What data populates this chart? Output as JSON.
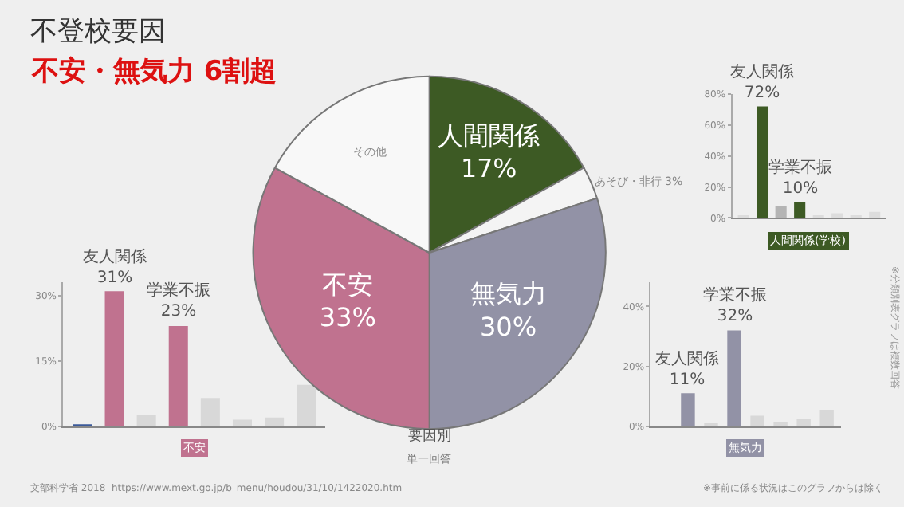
{
  "chart_data": [
    {
      "type": "pie",
      "title": "不登校要因",
      "subtitle": "不安・無気力 6割超",
      "categories": [
        "人間関係",
        "あそび・非行",
        "無気力",
        "不安",
        "その他"
      ],
      "values": [
        17,
        3,
        30,
        33,
        17
      ],
      "value_labels": [
        "17%",
        "3%",
        "30%",
        "33%",
        null
      ],
      "colors": [
        "#3d5a24",
        "#f4f4f4",
        "#9292a6",
        "#c0728f",
        "#f8f8f8"
      ],
      "annotations": [
        "要因別",
        "単一回答",
        "文部科学省 2018  https://www.mext.go.jp/b_menu/houdou/31/10/1422020.htm",
        "※事前に係る状況はこのグラフからは除く",
        "※分類別表グラフは複数回答"
      ]
    },
    {
      "type": "bar",
      "xlabel": "人間関係(学校)",
      "categories": [
        null,
        null,
        null,
        null,
        null,
        null,
        null,
        null
      ],
      "values": [
        1,
        72,
        8,
        10,
        1,
        3,
        1,
        4
      ],
      "colors": [
        "#dddddd",
        "#3d5a24",
        "#b4b4b4",
        "#3d5a24",
        "#dddddd",
        "#dddddd",
        "#dddddd",
        "#dddddd"
      ],
      "value_labels": [
        null,
        "友人関係\n72%",
        null,
        "学業不振\n10%",
        null,
        null,
        null,
        null
      ],
      "ylim": [
        0,
        80
      ],
      "yticks": [
        {
          "value": 0,
          "label": "0%"
        },
        {
          "value": 20,
          "label": "20%"
        },
        {
          "value": 40,
          "label": "40%"
        },
        {
          "value": 60,
          "label": "60%"
        },
        {
          "value": 80,
          "label": "80%"
        }
      ],
      "grid": false
    },
    {
      "type": "bar",
      "xlabel": "不安",
      "categories": [
        null,
        null,
        null,
        null,
        null,
        null,
        null,
        null
      ],
      "values": [
        0.3,
        31,
        2.5,
        23,
        6.5,
        1.5,
        2,
        9.5
      ],
      "colors": [
        "#3b5a9a",
        "#c0728f",
        "#d8d8d8",
        "#c0728f",
        "#d8d8d8",
        "#d8d8d8",
        "#d8d8d8",
        "#d8d8d8"
      ],
      "value_labels": [
        null,
        "友人関係\n31%",
        null,
        "学業不振\n23%",
        null,
        null,
        null,
        null
      ],
      "ylim": [
        0,
        33
      ],
      "yticks": [
        {
          "value": 0,
          "label": "0%"
        },
        {
          "value": 15,
          "label": "15%"
        },
        {
          "value": 30,
          "label": "30%"
        }
      ],
      "grid": false
    },
    {
      "type": "bar",
      "xlabel": "無気力",
      "categories": [
        null,
        null,
        null,
        null,
        null,
        null,
        null,
        null
      ],
      "values": [
        0,
        11,
        1,
        32,
        3.5,
        1.5,
        2.5,
        5.5
      ],
      "colors": [
        "#d8d8d8",
        "#9292a6",
        "#d8d8d8",
        "#9292a6",
        "#d8d8d8",
        "#d8d8d8",
        "#d8d8d8",
        "#d8d8d8"
      ],
      "value_labels": [
        null,
        "友人関係\n11%",
        null,
        "学業不振\n32%",
        null,
        null,
        null,
        null
      ],
      "ylim": [
        0,
        48
      ],
      "yticks": [
        {
          "value": 0,
          "label": "0%"
        },
        {
          "value": 20,
          "label": "20%"
        },
        {
          "value": 40,
          "label": "40%"
        }
      ],
      "grid": false
    }
  ]
}
